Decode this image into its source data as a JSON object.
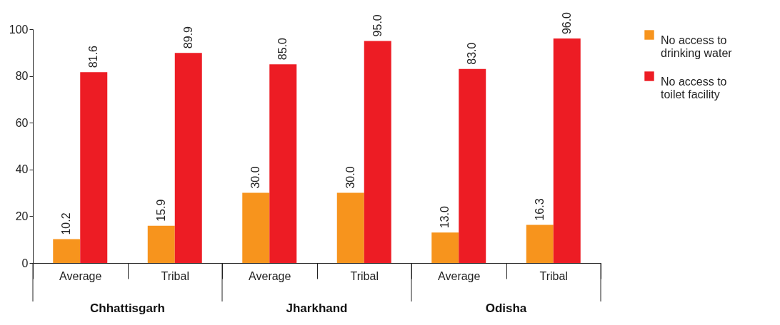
{
  "chart_data": {
    "type": "bar",
    "categories": [
      "Average",
      "Tribal",
      "Average",
      "Tribal",
      "Average",
      "Tribal"
    ],
    "annotations": [
      "Chhattisgarh",
      "Jharkhand",
      "Odisha"
    ],
    "series": [
      {
        "name": "No access to drinking water",
        "color": "#f7941d",
        "values": [
          10.2,
          15.9,
          30.0,
          30.0,
          13.0,
          16.3
        ],
        "value_labels": [
          "10.2",
          "15.9",
          "30.0",
          "30.0",
          "13.0",
          "16.3"
        ]
      },
      {
        "name": "No access to toilet facility",
        "color": "#ed1c24",
        "values": [
          81.6,
          89.9,
          85.0,
          95.0,
          83.0,
          96.0
        ],
        "value_labels": [
          "81.6",
          "89.9",
          "85.0",
          "95.0",
          "83.0",
          "96.0"
        ]
      }
    ],
    "ylim": [
      0,
      100
    ],
    "yticks": [
      0,
      20,
      40,
      60,
      80,
      100
    ],
    "grid": false,
    "legend": "right"
  }
}
